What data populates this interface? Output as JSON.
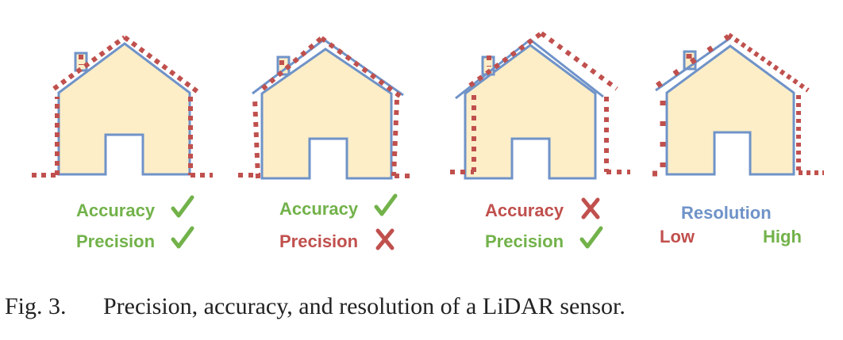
{
  "colors": {
    "house_fill": "#fdeec8",
    "house_outline": "#6f93c8",
    "measurement_dots": "#c0504d",
    "good": "#72b24a",
    "bad": "#c0504d",
    "resolution": "#6f93c8"
  },
  "panels": [
    {
      "labels": [
        {
          "text": "Accuracy",
          "mark": "check",
          "color": "good"
        },
        {
          "text": "Precision",
          "mark": "check",
          "color": "good"
        }
      ]
    },
    {
      "labels": [
        {
          "text": "Accuracy",
          "mark": "check",
          "color": "good"
        },
        {
          "text": "Precision",
          "mark": "cross",
          "color": "bad"
        }
      ]
    },
    {
      "labels": [
        {
          "text": "Accuracy",
          "mark": "cross",
          "color": "bad"
        },
        {
          "text": "Precision",
          "mark": "check",
          "color": "good"
        }
      ]
    },
    {
      "title": "Resolution",
      "low": "Low",
      "high": "High"
    }
  ],
  "icons": [
    "check-icon",
    "cross-icon"
  ],
  "caption": {
    "number": "Fig. 3.",
    "text": "Precision, accuracy, and resolution of a LiDAR sensor."
  }
}
